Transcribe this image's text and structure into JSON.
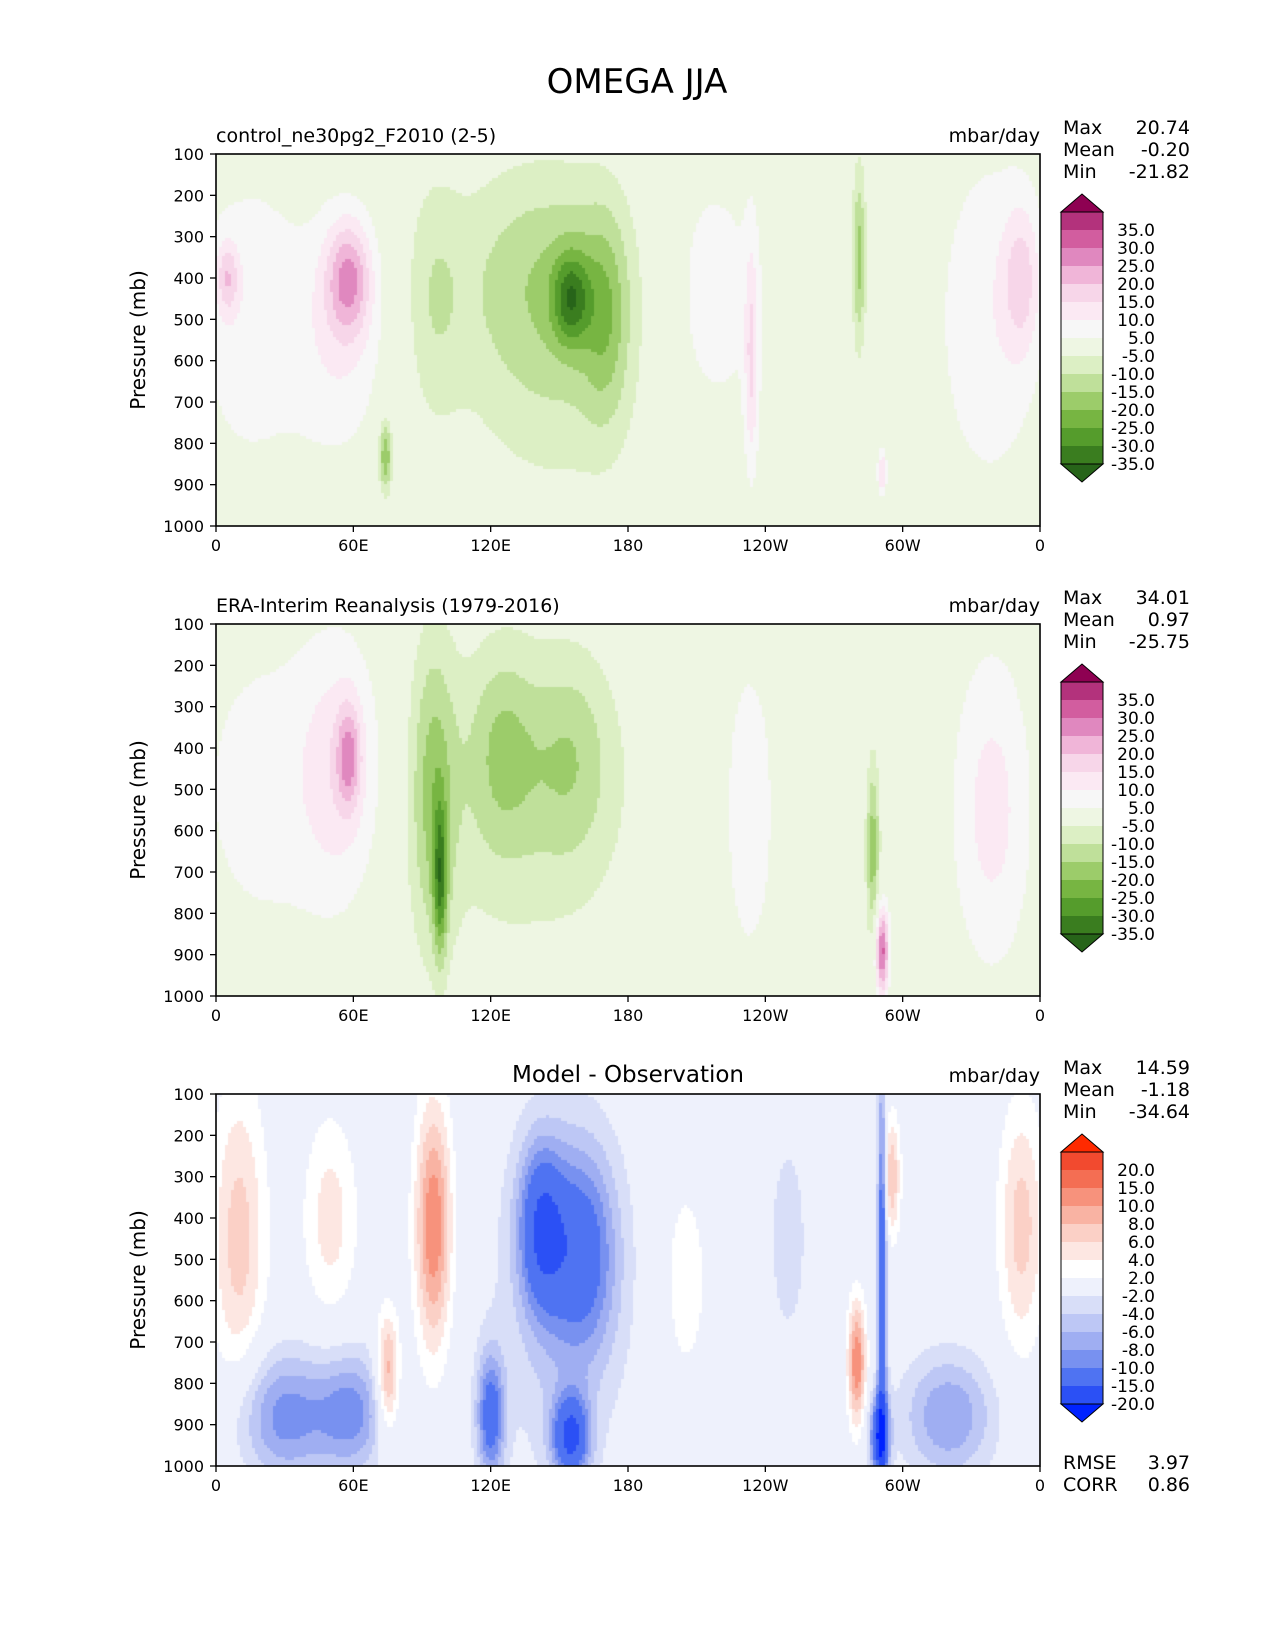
{
  "figure": {
    "title": "OMEGA JJA"
  },
  "colors": {
    "main_levels": [
      "#276419",
      "#3a7d1f",
      "#559c2c",
      "#77b542",
      "#9ccc6a",
      "#bfe09a",
      "#dcefc4",
      "#eef6e3",
      "#f7f7f7",
      "#fbe9f3",
      "#f7d6e9",
      "#f0b5d8",
      "#e088bf",
      "#d25d9f",
      "#b3327c",
      "#8e0152"
    ],
    "diff_levels": [
      "#0022ff",
      "#2b50f5",
      "#4f73f2",
      "#7891f0",
      "#9faef2",
      "#bdc7f5",
      "#d8def8",
      "#eef1fc",
      "#ffffff",
      "#fde7e2",
      "#fbd0c6",
      "#f9b3a3",
      "#f7927c",
      "#f46e53",
      "#f24a2f",
      "#ff2a00"
    ],
    "axis": "#000000"
  },
  "chart_data": [
    {
      "type": "contourf",
      "panel": "test",
      "title_left": "control_ne30pg2_F2010 (2-5)",
      "title_right": "mbar/day",
      "title_center": "",
      "ylabel": "Pressure (mb)",
      "xlabel": "",
      "x_tick_values": [
        0,
        60,
        120,
        180,
        240,
        300,
        360
      ],
      "x_ticks": [
        "0",
        "60E",
        "120E",
        "180",
        "120W",
        "60W",
        "0"
      ],
      "y_tick_values": [
        100,
        200,
        300,
        400,
        500,
        600,
        700,
        800,
        900,
        1000
      ],
      "y_ticks": [
        "100",
        "200",
        "300",
        "400",
        "500",
        "600",
        "700",
        "800",
        "900",
        "1000"
      ],
      "xlim": [
        0,
        360
      ],
      "ylim": [
        1000,
        100
      ],
      "stats": [
        {
          "label": "Max",
          "value": "20.74"
        },
        {
          "label": "Mean",
          "value": "-0.20"
        },
        {
          "label": "Min",
          "value": "-21.82"
        }
      ],
      "colorbar_labels": [
        "35.0",
        "30.0",
        "25.0",
        "20.0",
        "15.0",
        "10.0",
        "5.0",
        "-5.0",
        "-10.0",
        "-15.0",
        "-20.0",
        "-25.0",
        "-30.0",
        "-35.0"
      ],
      "colorbar_palette": "main",
      "features": [
        {
          "lon": 5,
          "p": 400,
          "wx": 5,
          "wp": 90,
          "v": 14
        },
        {
          "lon": 15,
          "p": 500,
          "wx": 28,
          "wp": 420,
          "v": 8
        },
        {
          "lon": 58,
          "p": 400,
          "wx": 10,
          "wp": 140,
          "v": 21
        },
        {
          "lon": 55,
          "p": 550,
          "wx": 20,
          "wp": 300,
          "v": 9
        },
        {
          "lon": 74,
          "p": 830,
          "wx": 3,
          "wp": 90,
          "v": -20
        },
        {
          "lon": 95,
          "p": 450,
          "wx": 12,
          "wp": 300,
          "v": -7
        },
        {
          "lon": 145,
          "p": 380,
          "wx": 42,
          "wp": 270,
          "v": -12
        },
        {
          "lon": 155,
          "p": 450,
          "wx": 8,
          "wp": 110,
          "v": -20
        },
        {
          "lon": 170,
          "p": 500,
          "wx": 10,
          "wp": 250,
          "v": -11
        },
        {
          "lon": 150,
          "p": 650,
          "wx": 45,
          "wp": 320,
          "v": -7
        },
        {
          "lon": 215,
          "p": 450,
          "wx": 28,
          "wp": 380,
          "v": 8
        },
        {
          "lon": 234,
          "p": 600,
          "wx": 3,
          "wp": 280,
          "v": 13
        },
        {
          "lon": 281,
          "p": 350,
          "wx": 3,
          "wp": 220,
          "v": -17
        },
        {
          "lon": 291,
          "p": 870,
          "wx": 2,
          "wp": 60,
          "v": 15
        },
        {
          "lon": 338,
          "p": 500,
          "wx": 25,
          "wp": 450,
          "v": 9
        },
        {
          "lon": 352,
          "p": 400,
          "wx": 8,
          "wp": 180,
          "v": 13
        }
      ]
    },
    {
      "type": "contourf",
      "panel": "reference",
      "title_left": "ERA-Interim Reanalysis (1979-2016)",
      "title_right": "mbar/day",
      "title_center": "",
      "ylabel": "Pressure (mb)",
      "xlabel": "",
      "x_tick_values": [
        0,
        60,
        120,
        180,
        240,
        300,
        360
      ],
      "x_ticks": [
        "0",
        "60E",
        "120E",
        "180",
        "120W",
        "60W",
        "0"
      ],
      "y_tick_values": [
        100,
        200,
        300,
        400,
        500,
        600,
        700,
        800,
        900,
        1000
      ],
      "y_ticks": [
        "100",
        "200",
        "300",
        "400",
        "500",
        "600",
        "700",
        "800",
        "900",
        "1000"
      ],
      "xlim": [
        0,
        360
      ],
      "ylim": [
        1000,
        100
      ],
      "stats": [
        {
          "label": "Max",
          "value": "34.01"
        },
        {
          "label": "Mean",
          "value": "0.97"
        },
        {
          "label": "Min",
          "value": "-25.75"
        }
      ],
      "colorbar_labels": [
        "35.0",
        "30.0",
        "25.0",
        "20.0",
        "15.0",
        "10.0",
        "5.0",
        "-5.0",
        "-10.0",
        "-15.0",
        "-20.0",
        "-25.0",
        "-30.0",
        "-35.0"
      ],
      "colorbar_palette": "main",
      "features": [
        {
          "lon": 20,
          "p": 500,
          "wx": 35,
          "wp": 450,
          "v": 7
        },
        {
          "lon": 55,
          "p": 450,
          "wx": 18,
          "wp": 320,
          "v": 12
        },
        {
          "lon": 58,
          "p": 420,
          "wx": 5,
          "wp": 120,
          "v": 17
        },
        {
          "lon": 95,
          "p": 500,
          "wx": 10,
          "wp": 380,
          "v": -15
        },
        {
          "lon": 98,
          "p": 720,
          "wx": 3,
          "wp": 180,
          "v": -22
        },
        {
          "lon": 125,
          "p": 400,
          "wx": 15,
          "wp": 250,
          "v": -11
        },
        {
          "lon": 155,
          "p": 420,
          "wx": 18,
          "wp": 250,
          "v": -10
        },
        {
          "lon": 135,
          "p": 550,
          "wx": 50,
          "wp": 400,
          "v": -7
        },
        {
          "lon": 233,
          "p": 550,
          "wx": 12,
          "wp": 400,
          "v": 9
        },
        {
          "lon": 287,
          "p": 650,
          "wx": 3,
          "wp": 220,
          "v": -18
        },
        {
          "lon": 291,
          "p": 890,
          "wx": 3,
          "wp": 110,
          "v": 32
        },
        {
          "lon": 339,
          "p": 550,
          "wx": 18,
          "wp": 400,
          "v": 12
        }
      ]
    },
    {
      "type": "contourf",
      "panel": "difference",
      "title_left": "",
      "title_right": "mbar/day",
      "title_center": "Model - Observation",
      "ylabel": "Pressure (mb)",
      "xlabel": "",
      "x_tick_values": [
        0,
        60,
        120,
        180,
        240,
        300,
        360
      ],
      "x_ticks": [
        "0",
        "60E",
        "120E",
        "180",
        "120W",
        "60W",
        "0"
      ],
      "y_tick_values": [
        100,
        200,
        300,
        400,
        500,
        600,
        700,
        800,
        900,
        1000
      ],
      "y_ticks": [
        "100",
        "200",
        "300",
        "400",
        "500",
        "600",
        "700",
        "800",
        "900",
        "1000"
      ],
      "xlim": [
        0,
        360
      ],
      "ylim": [
        1000,
        100
      ],
      "stats": [
        {
          "label": "Max",
          "value": "14.59"
        },
        {
          "label": "Mean",
          "value": "-1.18"
        },
        {
          "label": "Min",
          "value": "-34.64"
        }
      ],
      "bottom_stats": [
        {
          "label": "RMSE",
          "value": "3.97"
        },
        {
          "label": "CORR",
          "value": "0.86"
        }
      ],
      "colorbar_labels": [
        "20.0",
        "15.0",
        "10.0",
        "8.0",
        "6.0",
        "4.0",
        "2.0",
        "-2.0",
        "-4.0",
        "-6.0",
        "-8.0",
        "-10.0",
        "-15.0",
        "-20.0"
      ],
      "colorbar_palette": "diff",
      "features": [
        {
          "lon": 10,
          "p": 450,
          "wx": 12,
          "wp": 380,
          "v": 7
        },
        {
          "lon": 50,
          "p": 400,
          "wx": 12,
          "wp": 250,
          "v": 5
        },
        {
          "lon": 75,
          "p": 780,
          "wx": 5,
          "wp": 150,
          "v": 10
        },
        {
          "lon": 95,
          "p": 420,
          "wx": 8,
          "wp": 300,
          "v": 12
        },
        {
          "lon": 30,
          "p": 880,
          "wx": 22,
          "wp": 160,
          "v": -9
        },
        {
          "lon": 60,
          "p": 870,
          "wx": 15,
          "wp": 150,
          "v": -8
        },
        {
          "lon": 120,
          "p": 880,
          "wx": 6,
          "wp": 150,
          "v": -12
        },
        {
          "lon": 142,
          "p": 420,
          "wx": 10,
          "wp": 200,
          "v": -12
        },
        {
          "lon": 160,
          "p": 480,
          "wx": 15,
          "wp": 250,
          "v": -10
        },
        {
          "lon": 155,
          "p": 930,
          "wx": 8,
          "wp": 100,
          "v": -15
        },
        {
          "lon": 150,
          "p": 600,
          "wx": 30,
          "wp": 450,
          "v": -4
        },
        {
          "lon": 205,
          "p": 550,
          "wx": 12,
          "wp": 300,
          "v": 3
        },
        {
          "lon": 250,
          "p": 450,
          "wx": 10,
          "wp": 300,
          "v": -3
        },
        {
          "lon": 280,
          "p": 750,
          "wx": 4,
          "wp": 150,
          "v": 12
        },
        {
          "lon": 291,
          "p": 520,
          "wx": 2,
          "wp": 450,
          "v": -16
        },
        {
          "lon": 295,
          "p": 300,
          "wx": 4,
          "wp": 150,
          "v": 8
        },
        {
          "lon": 290,
          "p": 930,
          "wx": 4,
          "wp": 100,
          "v": -18
        },
        {
          "lon": 320,
          "p": 880,
          "wx": 20,
          "wp": 150,
          "v": -8
        },
        {
          "lon": 352,
          "p": 420,
          "wx": 10,
          "wp": 300,
          "v": 7
        }
      ]
    }
  ]
}
